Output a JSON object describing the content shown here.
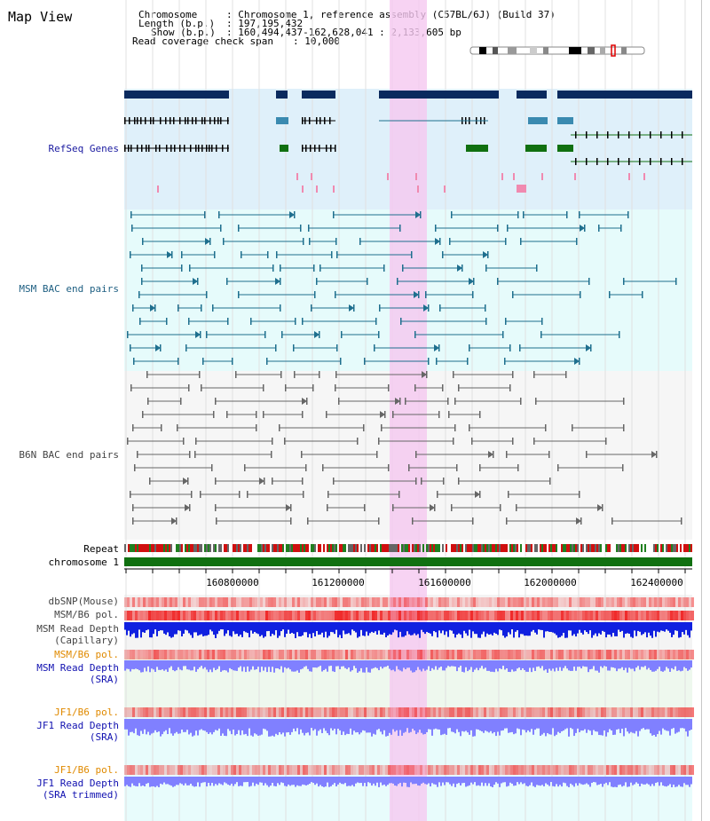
{
  "window": {
    "title": "Map View"
  },
  "info": {
    "chromosome_label": "Chromosome",
    "chromosome_value": ": Chromosome 1, reference assembly (C57BL/6J) (Build 37)",
    "length_label": "Length (b.p.)",
    "length_value": ": 197,195,432",
    "show_label": "Show (b.p.)",
    "show_value": ": 160,494,437-162,628,041 : 2,133,605 bp",
    "coverage_label": "Read coverage check span",
    "coverage_value": ": 10,000"
  },
  "tracks": {
    "refseq": "RefSeq Genes",
    "msm_bac": "MSM BAC end pairs",
    "b6n_bac": "B6N BAC end pairs",
    "repeat": "Repeat",
    "chromosome": "chromosome 1",
    "dbsnp": "dbSNP(Mouse)",
    "msm_b6_pol": "MSM/B6 pol.",
    "msm_depth_cap_1": "MSM Read Depth",
    "msm_depth_cap_2": "(Capillary)",
    "msm_b6_pol_sra": "MSM/B6 pol.",
    "msm_depth_sra_1": "MSM Read Depth",
    "msm_depth_sra_2": "(SRA)",
    "jf1_b6_pol": "JF1/B6 pol.",
    "jf1_depth_sra_1": "JF1 Read Depth",
    "jf1_depth_sra_2": "(SRA)",
    "jf1_b6_pol_trim": "JF1/B6 pol.",
    "jf1_depth_trim_1": "JF1 Read Depth",
    "jf1_depth_trim_2": "(SRA trimmed)"
  },
  "axis": {
    "ticks": [
      "160800000",
      "161200000",
      "161600000",
      "162000000",
      "162400000"
    ]
  },
  "colors": {
    "refseq_label": "#1a1aa0",
    "msm_label": "#1e5f82",
    "b6n_label": "#444444",
    "orange_label": "#e08a00",
    "blue_label": "#1010b0",
    "gene_dark": "#0a2a5e",
    "gene_green": "#107010",
    "msm_line": "#1e6f8e",
    "b6n_line": "#666666",
    "highlight": "#f5c8f0",
    "chrom_bar": "#107010",
    "depth_dark": "#1020e0",
    "depth_light": "#8080ff",
    "pol_red": "#f04040"
  }
}
